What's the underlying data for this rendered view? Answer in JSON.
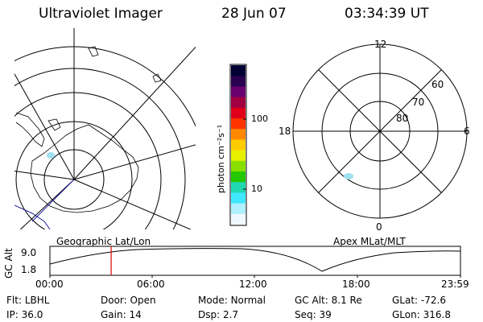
{
  "header": {
    "title": "Ultraviolet Imager",
    "date": "28 Jun 07",
    "time": "03:34:39 UT"
  },
  "geo_panel": {
    "caption": "Geographic Lat/Lon"
  },
  "apex_panel": {
    "caption": "Apex MLat/MLT",
    "mlt_labels": {
      "top": "12",
      "left": "18",
      "right": "6",
      "bottom": "0"
    },
    "lat_labels": [
      "60",
      "70",
      "80"
    ]
  },
  "colorbar": {
    "unit_label": "photon cm⁻²s⁻¹",
    "ticks": [
      "100",
      "10"
    ],
    "colors": [
      "#000033",
      "#2a0050",
      "#6a0070",
      "#a00040",
      "#e0001a",
      "#ff3300",
      "#ff8800",
      "#ffcc00",
      "#e6f000",
      "#88e000",
      "#22c800",
      "#20d8b0",
      "#40e8ff",
      "#b0f0ff",
      "#f0f8ff"
    ]
  },
  "timeline": {
    "ylabel": "GC Alt",
    "yticks": [
      "9.0",
      "1.8"
    ],
    "xticks": [
      "00:00",
      "06:00",
      "12:00",
      "18:00",
      "23:59"
    ],
    "marker_time_hours": 3.58
  },
  "info": {
    "row1": [
      {
        "label": "Flt:",
        "value": "LBHL"
      },
      {
        "label": "Door:",
        "value": "Open"
      },
      {
        "label": "Mode:",
        "value": "Normal"
      },
      {
        "label": "GC Alt:",
        "value": "8.1 Re"
      },
      {
        "label": "GLat:",
        "value": "-72.6"
      }
    ],
    "row2": [
      {
        "label": "IP:",
        "value": "36.0"
      },
      {
        "label": "Gain:",
        "value": "14"
      },
      {
        "label": "Dsp:",
        "value": "2.7"
      },
      {
        "label": "Seq:",
        "value": "39"
      },
      {
        "label": "GLon:",
        "value": "316.8"
      }
    ]
  },
  "colors": {
    "marker": "#e00000",
    "orbit_track": "#2020a0",
    "aurora_patch": "#a0e0f0"
  }
}
